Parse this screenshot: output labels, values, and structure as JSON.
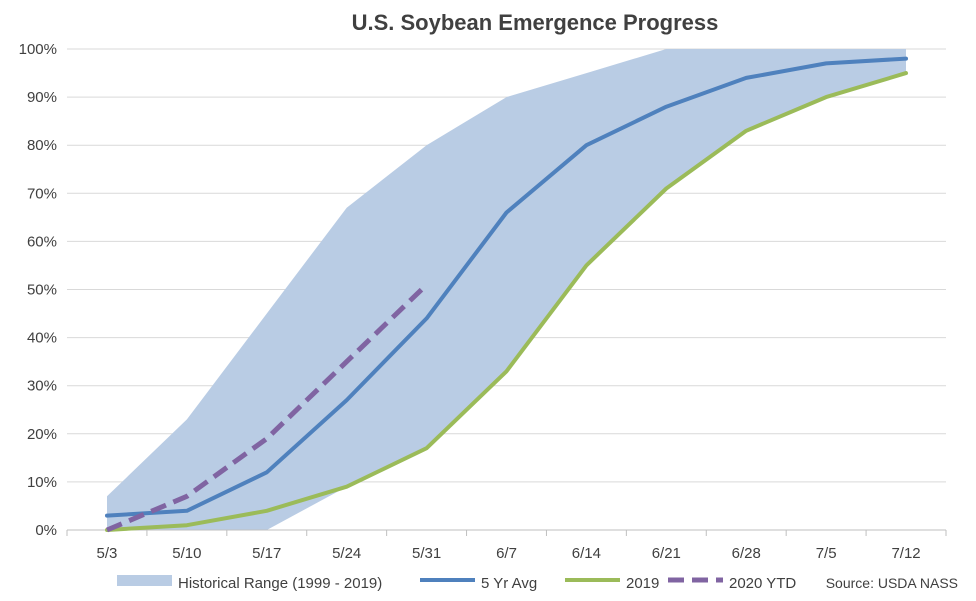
{
  "chart_data": {
    "type": "line",
    "title": "U.S. Soybean Emergence Progress",
    "source_note": "Source: USDA NASS",
    "categories": [
      "5/3",
      "5/10",
      "5/17",
      "5/24",
      "5/31",
      "6/7",
      "6/14",
      "6/21",
      "6/28",
      "7/5",
      "7/12"
    ],
    "y_ticks": [
      "0%",
      "10%",
      "20%",
      "30%",
      "40%",
      "50%",
      "60%",
      "70%",
      "80%",
      "90%",
      "100%"
    ],
    "ylim": [
      0,
      100
    ],
    "grid": true,
    "legend_position": "bottom",
    "range": {
      "name": "Historical Range (1999 - 2019)",
      "color": "#b9cce4",
      "low": [
        0,
        0,
        0,
        9,
        17,
        33,
        55,
        71,
        83,
        90,
        95
      ],
      "high": [
        7,
        23,
        45,
        67,
        80,
        90,
        95,
        100,
        100,
        100,
        100
      ]
    },
    "series": [
      {
        "name": "5 Yr Avg",
        "color": "#4f81bd",
        "dashed": false,
        "values": [
          3,
          4,
          12,
          27,
          44,
          66,
          80,
          88,
          94,
          97,
          98
        ]
      },
      {
        "name": "2019",
        "color": "#9bbb59",
        "dashed": false,
        "values": [
          0,
          1,
          4,
          9,
          17,
          33,
          55,
          71,
          83,
          90,
          95
        ]
      },
      {
        "name": "2020 YTD",
        "color": "#8064a2",
        "dashed": true,
        "values": [
          0,
          7,
          19,
          35,
          51,
          null,
          null,
          null,
          null,
          null,
          null
        ]
      }
    ]
  }
}
